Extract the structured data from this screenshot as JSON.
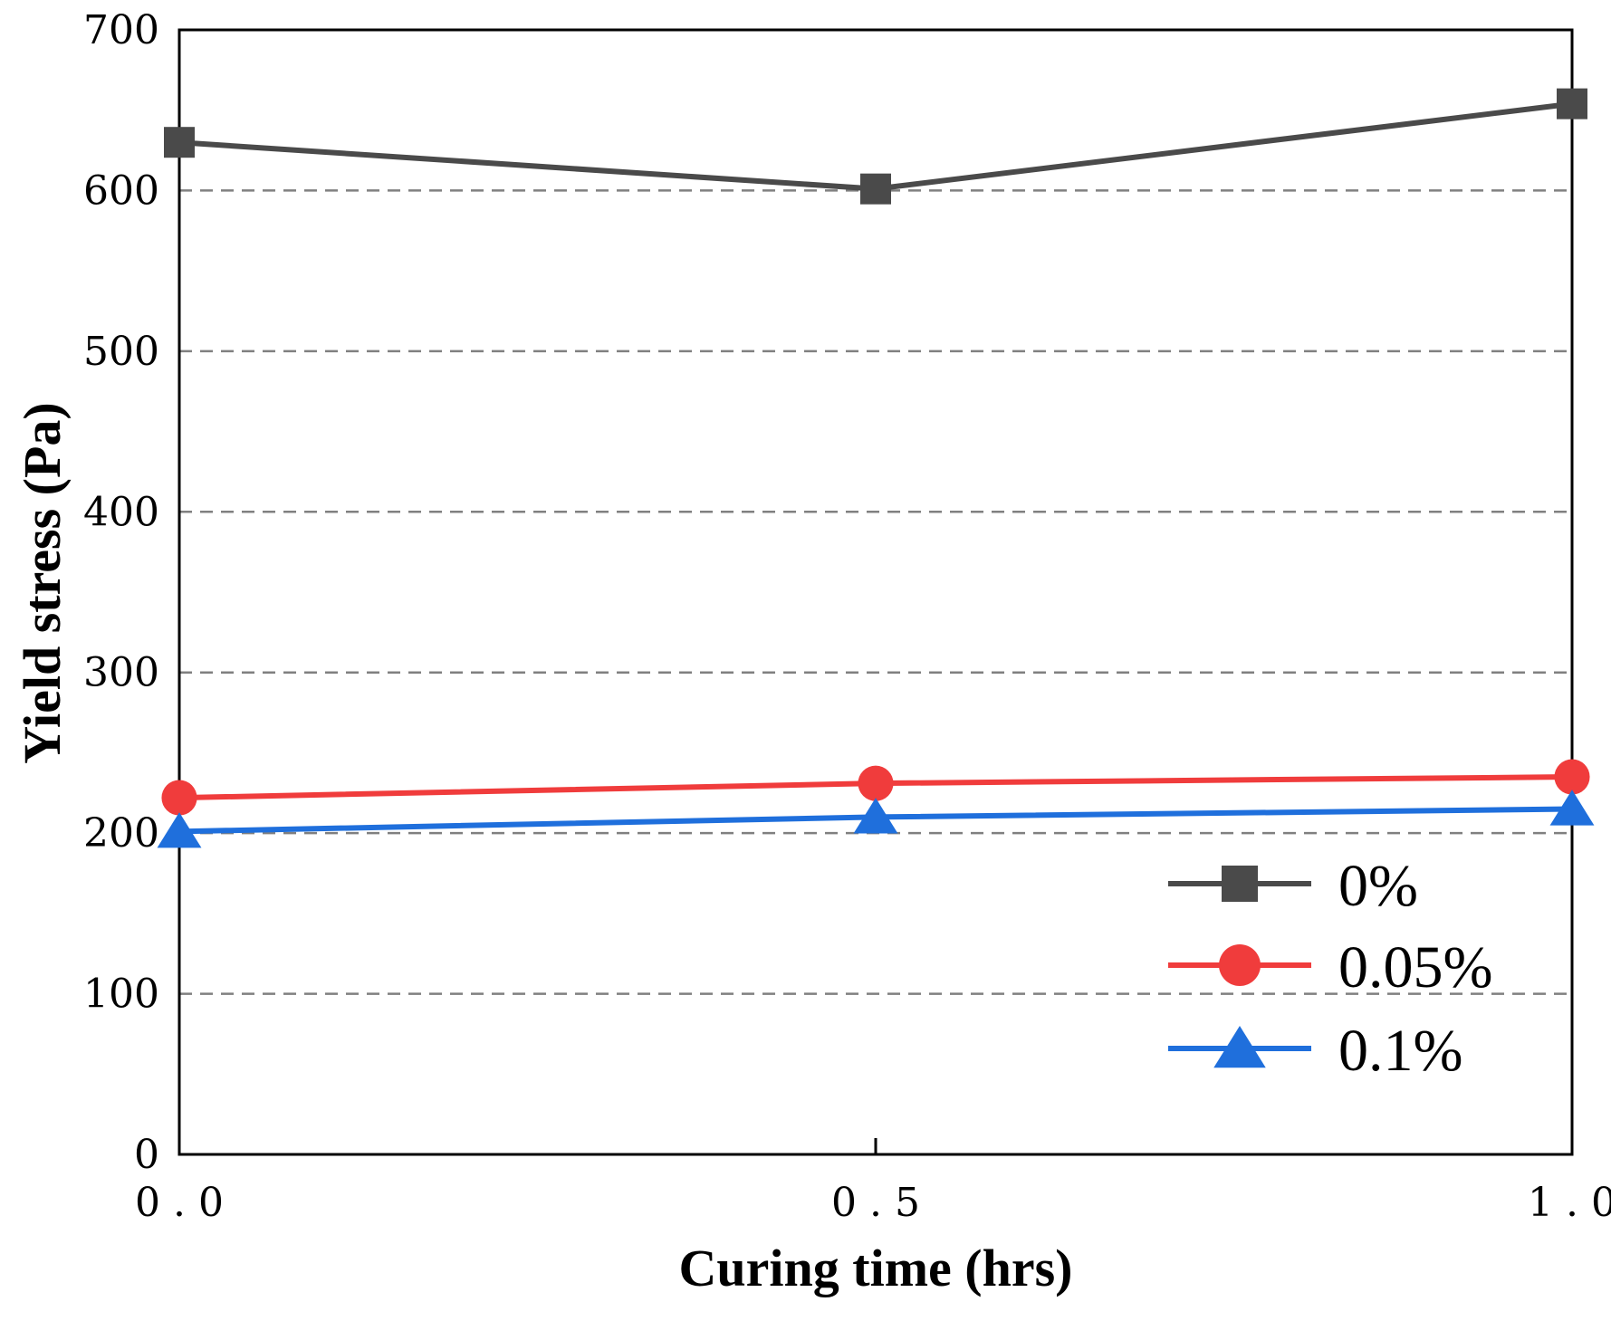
{
  "chart_data": {
    "type": "line",
    "xlabel": "Curing time (hrs)",
    "ylabel": "Yield stress (Pa)",
    "x": [
      0.0,
      0.5,
      1.0
    ],
    "xticks": [
      "0.0",
      "0.5",
      "1.0"
    ],
    "xlim": [
      0.0,
      1.0
    ],
    "yticks": [
      "0",
      "100",
      "200",
      "300",
      "400",
      "500",
      "600",
      "700"
    ],
    "ylim": [
      0,
      700
    ],
    "grid": "horizontal-dashed",
    "legend_position": "bottom-right",
    "series": [
      {
        "name": "0%",
        "values": [
          630,
          601,
          654
        ],
        "color": "#4a4a4a",
        "marker": "square"
      },
      {
        "name": "0.05%",
        "values": [
          222,
          231,
          235
        ],
        "color": "#f03c3c",
        "marker": "circle"
      },
      {
        "name": "0.1%",
        "values": [
          201,
          210,
          215
        ],
        "color": "#1f6fdc",
        "marker": "triangle"
      }
    ]
  }
}
